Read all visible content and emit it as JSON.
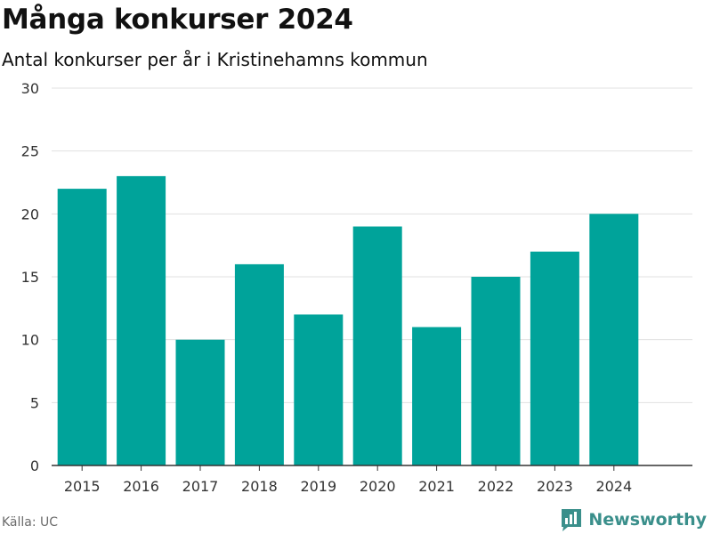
{
  "header": {
    "title": "Många konkurser 2024",
    "subtitle": "Antal konkurser per år i Kristinehamns kommun"
  },
  "footer": {
    "source": "Källa: UC",
    "brand": "Newsworthy"
  },
  "colors": {
    "bar": "#00a39a",
    "grid": "#e0e0e0",
    "axis": "#333333",
    "brand": "#3a8f8b"
  },
  "chart_data": {
    "type": "bar",
    "title": "Många konkurser 2024",
    "subtitle": "Antal konkurser per år i Kristinehamns kommun",
    "xlabel": "",
    "ylabel": "",
    "categories": [
      "2015",
      "2016",
      "2017",
      "2018",
      "2019",
      "2020",
      "2021",
      "2022",
      "2023",
      "2024"
    ],
    "values": [
      22,
      23,
      10,
      16,
      12,
      19,
      11,
      15,
      17,
      20
    ],
    "ylim": [
      0,
      30
    ],
    "yticks": [
      0,
      5,
      10,
      15,
      20,
      25,
      30
    ],
    "grid": true,
    "legend": "none"
  }
}
